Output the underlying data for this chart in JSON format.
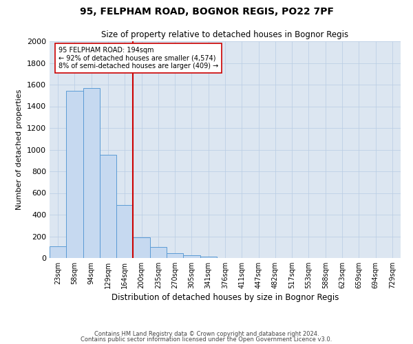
{
  "title1": "95, FELPHAM ROAD, BOGNOR REGIS, PO22 7PF",
  "title2": "Size of property relative to detached houses in Bognor Regis",
  "xlabel": "Distribution of detached houses by size in Bognor Regis",
  "ylabel": "Number of detached properties",
  "categories": [
    "23sqm",
    "58sqm",
    "94sqm",
    "129sqm",
    "164sqm",
    "200sqm",
    "235sqm",
    "270sqm",
    "305sqm",
    "341sqm",
    "376sqm",
    "411sqm",
    "447sqm",
    "482sqm",
    "517sqm",
    "553sqm",
    "588sqm",
    "623sqm",
    "659sqm",
    "694sqm",
    "729sqm"
  ],
  "values": [
    110,
    1540,
    1570,
    950,
    490,
    190,
    100,
    45,
    25,
    15,
    0,
    0,
    0,
    0,
    0,
    0,
    0,
    0,
    0,
    0,
    0
  ],
  "bar_color": "#c6d9f0",
  "bar_edge_color": "#5b9bd5",
  "vline_color": "#cc0000",
  "annotation_text": "95 FELPHAM ROAD: 194sqm\n← 92% of detached houses are smaller (4,574)\n8% of semi-detached houses are larger (409) →",
  "annotation_box_color": "#ffffff",
  "annotation_box_edge_color": "#cc0000",
  "ylim": [
    0,
    2000
  ],
  "yticks": [
    0,
    200,
    400,
    600,
    800,
    1000,
    1200,
    1400,
    1600,
    1800,
    2000
  ],
  "bg_color": "#dce6f1",
  "footer1": "Contains HM Land Registry data © Crown copyright and database right 2024.",
  "footer2": "Contains public sector information licensed under the Open Government Licence v3.0."
}
